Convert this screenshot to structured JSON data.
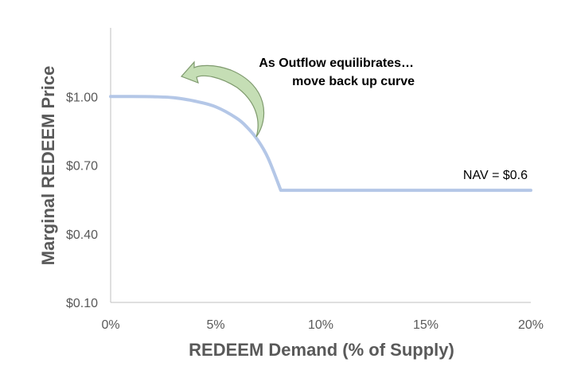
{
  "chart_data": {
    "type": "line",
    "title": "",
    "xlabel": "REDEEM Demand (% of Supply)",
    "ylabel": "Marginal REDEEM Price",
    "xlim": [
      0,
      20
    ],
    "ylim": [
      0.1,
      1.3
    ],
    "x_ticks": [
      0,
      5,
      10,
      15,
      20
    ],
    "x_tick_labels": [
      "0%",
      "5%",
      "10%",
      "15%",
      "20%"
    ],
    "y_ticks": [
      0.1,
      0.4,
      0.7,
      1.0
    ],
    "y_tick_labels": [
      "$0.10",
      "$0.40",
      "$0.70",
      "$1.00"
    ],
    "grid": false,
    "legend": "none",
    "series": [
      {
        "color": "#b4c7e7",
        "points": [
          {
            "x": 0,
            "y": 1.0
          },
          {
            "x": 1,
            "y": 1.0
          },
          {
            "x": 2,
            "y": 0.999
          },
          {
            "x": 3,
            "y": 0.995
          },
          {
            "x": 4,
            "y": 0.98
          },
          {
            "x": 5,
            "y": 0.955
          },
          {
            "x": 6,
            "y": 0.905
          },
          {
            "x": 6.5,
            "y": 0.865
          },
          {
            "x": 7,
            "y": 0.81
          },
          {
            "x": 7.5,
            "y": 0.73
          },
          {
            "x": 8.1,
            "y": 0.59
          },
          {
            "x": 20,
            "y": 0.59
          }
        ]
      }
    ],
    "annotations": [
      {
        "id": "outflow-line1",
        "text": "As Outflow equilibrates…"
      },
      {
        "id": "outflow-line2",
        "text": "move back up curve"
      },
      {
        "id": "nav",
        "text": "NAV = $0.6"
      }
    ],
    "arrow": {
      "fill_color": "#c5deb5",
      "stroke_color": "#7f9a6e",
      "direction": "up-left along curve"
    }
  }
}
